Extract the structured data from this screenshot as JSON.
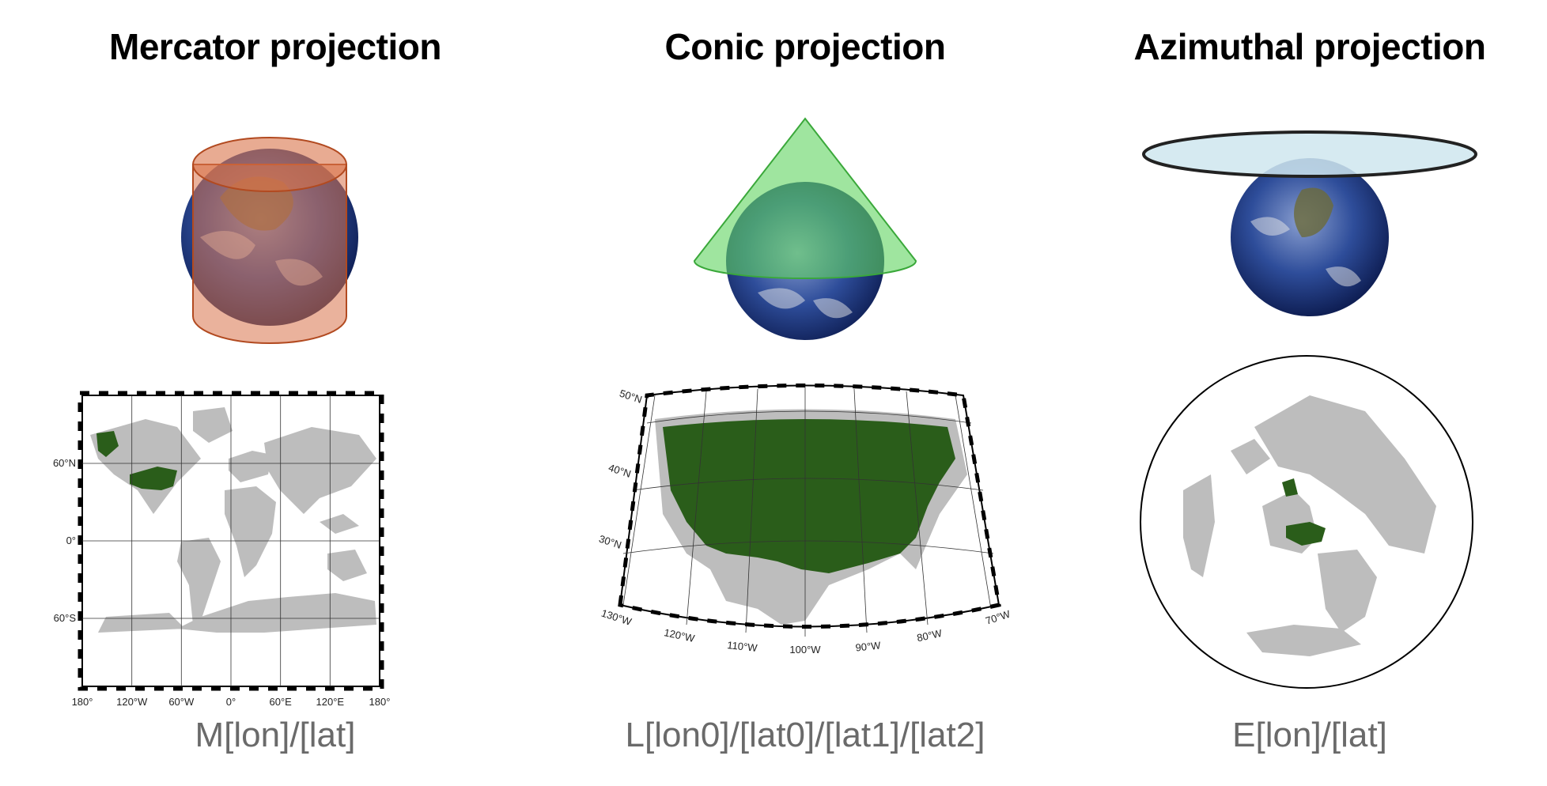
{
  "projections": [
    {
      "title": "Mercator projection",
      "code": "M[lon]/[lat]",
      "figure_color": "#d9734a",
      "lon_labels": [
        "180°",
        "120°W",
        "60°W",
        "0°",
        "60°E",
        "120°E",
        "180°"
      ],
      "lat_labels": [
        "60°N",
        "0°",
        "60°S"
      ]
    },
    {
      "title": "Conic projection",
      "code": "L[lon0]/[lat0]/[lat1]/[lat2]",
      "figure_color": "#5fd35f",
      "lon_labels": [
        "130°W",
        "120°W",
        "110°W",
        "100°W",
        "90°W",
        "80°W",
        "70°W"
      ],
      "lat_labels": [
        "50°N",
        "40°N",
        "30°N"
      ]
    },
    {
      "title": "Azimuthal projection",
      "code": "E[lon]/[lat]",
      "figure_color": "#cfe6ef"
    }
  ],
  "colors": {
    "land": "#bdbdbd",
    "usa": "#2a5d1a",
    "ocean": "#ffffff",
    "globe": "#2e4d9a"
  }
}
